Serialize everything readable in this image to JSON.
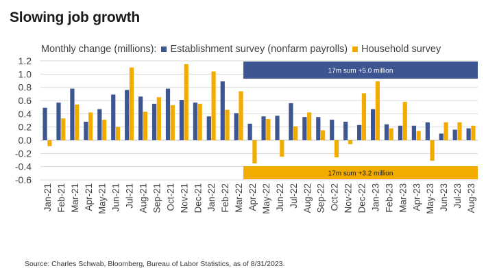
{
  "title": "Slowing job growth",
  "legend": {
    "prefix": "Monthly change (millions):",
    "items": [
      {
        "label": "Establishment survey (nonfarm payrolls)",
        "color": "#3d5591"
      },
      {
        "label": "Household survey",
        "color": "#f2ac00"
      }
    ]
  },
  "source": "Source: Charles Schwab, Bloomberg, Bureau of Labor Statistics, as of 8/31/2023.",
  "colors": {
    "establishment": "#3d5591",
    "household": "#f2ac00",
    "grid": "#d9d9d9",
    "baseline": "#bfbfbf"
  },
  "chart_data": {
    "type": "bar",
    "ylim": [
      -0.6,
      1.2
    ],
    "yticks": [
      -0.6,
      -0.4,
      -0.2,
      0,
      0.2,
      0.4,
      0.6,
      0.8,
      1.0,
      1.2
    ],
    "ytick_labels": [
      "-0.6",
      "-0.4",
      "-0.2",
      "0.0",
      "0.2",
      "0.4",
      "0.6",
      "0.8",
      "1.0",
      "1.2"
    ],
    "grid": true,
    "categories": [
      "Jan-21",
      "Feb-21",
      "Mar-21",
      "Apr-21",
      "May-21",
      "Jun-21",
      "Jul-21",
      "Aug-21",
      "Sep-21",
      "Oct-21",
      "Nov-21",
      "Dec-21",
      "Jan-22",
      "Feb-22",
      "Mar-22",
      "Apr-22",
      "May-22",
      "Jun-22",
      "Jul-22",
      "Aug-22",
      "Sep-22",
      "Oct-22",
      "Nov-22",
      "Dec-22",
      "Jan-23",
      "Feb-23",
      "Mar-23",
      "Apr-23",
      "May-23",
      "Jun-23",
      "Jul-23",
      "Aug-23"
    ],
    "series": [
      {
        "name": "Establishment survey (nonfarm payrolls)",
        "values": [
          0.49,
          0.57,
          0.78,
          0.28,
          0.47,
          0.69,
          0.76,
          0.66,
          0.55,
          0.78,
          0.61,
          0.57,
          0.36,
          0.89,
          0.41,
          0.25,
          0.36,
          0.37,
          0.56,
          0.35,
          0.35,
          0.31,
          0.28,
          0.23,
          0.47,
          0.24,
          0.22,
          0.22,
          0.27,
          0.1,
          0.16,
          0.18
        ]
      },
      {
        "name": "Household survey",
        "values": [
          -0.09,
          0.33,
          0.54,
          0.42,
          0.31,
          0.2,
          1.1,
          0.43,
          0.65,
          0.53,
          1.15,
          0.55,
          1.04,
          0.46,
          0.74,
          -0.35,
          0.32,
          -0.25,
          0.21,
          0.42,
          0.15,
          -0.26,
          -0.06,
          0.71,
          0.89,
          0.18,
          0.58,
          0.14,
          -0.31,
          0.27,
          0.27,
          0.22
        ]
      }
    ],
    "annotations": [
      {
        "text": "17m sum +5.0 million",
        "series": "Establishment survey (nonfarm payrolls)",
        "from": "Apr-22",
        "to": "Aug-23",
        "color": "#3d5591"
      },
      {
        "text": "17m sum +3.2 million",
        "series": "Household survey",
        "from": "Apr-22",
        "to": "Aug-23",
        "color": "#f2ac00"
      }
    ]
  }
}
